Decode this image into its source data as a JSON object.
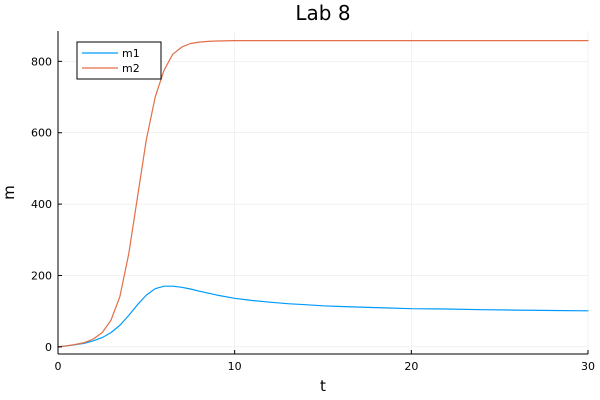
{
  "chart_data": {
    "type": "line",
    "title": "Lab 8",
    "xlabel": "t",
    "ylabel": "m",
    "xlim": [
      0,
      30
    ],
    "ylim": [
      -20,
      885
    ],
    "xticks": [
      0,
      10,
      20,
      30
    ],
    "xtick_labels": [
      "0",
      "10",
      "20",
      "30"
    ],
    "yticks": [
      0,
      200,
      400,
      600,
      800
    ],
    "ytick_labels": [
      "0",
      "200",
      "400",
      "600",
      "800"
    ],
    "grid": true,
    "legend_position": "top-left",
    "series": [
      {
        "name": "m1",
        "color": "#009AFA",
        "x": [
          0,
          0.5,
          1,
          1.5,
          2,
          2.5,
          3,
          3.5,
          4,
          4.5,
          5,
          5.5,
          6,
          6.5,
          7,
          7.5,
          8,
          9,
          10,
          11,
          12,
          13,
          14,
          15,
          16,
          18,
          20,
          22,
          24,
          26,
          28,
          30
        ],
        "y": [
          0,
          3,
          6,
          10,
          17,
          26,
          40,
          60,
          88,
          118,
          145,
          163,
          170,
          170,
          167,
          162,
          156,
          145,
          136,
          130,
          125,
          121,
          118,
          115,
          113,
          110,
          107,
          106,
          104,
          103,
          102,
          101
        ]
      },
      {
        "name": "m2",
        "color": "#E36F47",
        "x": [
          0,
          0.5,
          1,
          1.5,
          2,
          2.5,
          3,
          3.5,
          4,
          4.5,
          5,
          5.5,
          6,
          6.5,
          7,
          7.5,
          8,
          8.5,
          9,
          10,
          11,
          12,
          14,
          16,
          20,
          25,
          30
        ],
        "y": [
          0,
          3,
          7,
          12,
          22,
          40,
          75,
          140,
          260,
          420,
          580,
          700,
          775,
          820,
          840,
          850,
          854,
          856,
          857,
          858,
          858,
          858,
          858,
          858,
          858,
          858,
          858
        ]
      }
    ]
  }
}
